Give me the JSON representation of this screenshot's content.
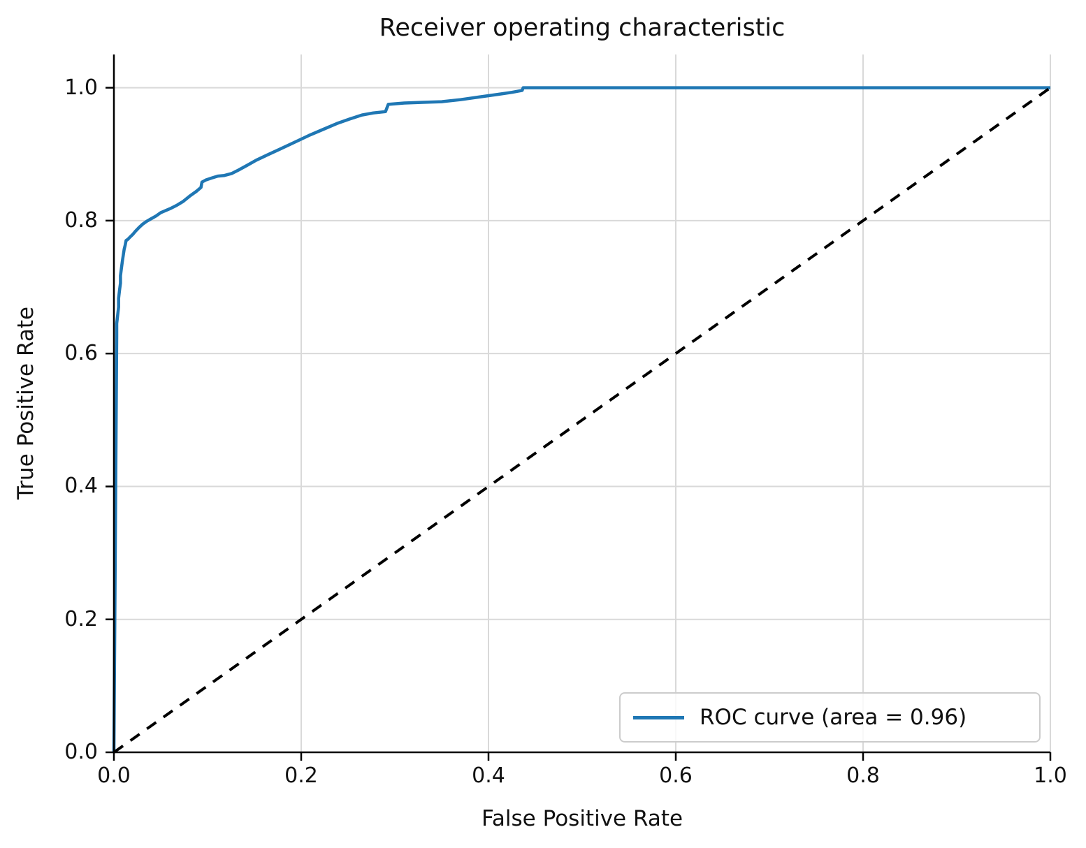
{
  "figure": {
    "background": "#ffffff"
  },
  "colors": {
    "roc_curve": "#1f77b4",
    "chance_line": "#000000",
    "grid": "#d9d9d9",
    "spine": "#000000",
    "text": "#111111",
    "legend_border": "#cccccc"
  },
  "chart_data": {
    "type": "line",
    "title": "Receiver operating characteristic",
    "xlabel": "False Positive Rate",
    "ylabel": "True Positive Rate",
    "xlim": [
      0.0,
      1.0
    ],
    "ylim": [
      0.0,
      1.05
    ],
    "xticks": [
      0.0,
      0.2,
      0.4,
      0.6,
      0.8,
      1.0
    ],
    "yticks": [
      0.0,
      0.2,
      0.4,
      0.6,
      0.8,
      1.0
    ],
    "grid": true,
    "legend": {
      "position": "lower right",
      "entries": [
        {
          "label": "ROC curve (area = 0.96)",
          "color": "#1f77b4",
          "style": "solid"
        }
      ]
    },
    "series": [
      {
        "name": "roc-curve",
        "label": "ROC curve (area = 0.96)",
        "auc": 0.96,
        "color": "#1f77b4",
        "style": "solid",
        "line_width": 4.5,
        "points": [
          [
            0.0,
            0.0
          ],
          [
            0.003,
            0.627
          ],
          [
            0.003,
            0.645
          ],
          [
            0.004,
            0.658
          ],
          [
            0.005,
            0.67
          ],
          [
            0.005,
            0.683
          ],
          [
            0.006,
            0.695
          ],
          [
            0.007,
            0.706
          ],
          [
            0.007,
            0.717
          ],
          [
            0.008,
            0.728
          ],
          [
            0.009,
            0.739
          ],
          [
            0.01,
            0.748
          ],
          [
            0.011,
            0.757
          ],
          [
            0.012,
            0.763
          ],
          [
            0.013,
            0.77
          ],
          [
            0.015,
            0.772
          ],
          [
            0.017,
            0.775
          ],
          [
            0.02,
            0.779
          ],
          [
            0.023,
            0.784
          ],
          [
            0.027,
            0.79
          ],
          [
            0.031,
            0.795
          ],
          [
            0.035,
            0.799
          ],
          [
            0.04,
            0.803
          ],
          [
            0.045,
            0.807
          ],
          [
            0.05,
            0.812
          ],
          [
            0.055,
            0.815
          ],
          [
            0.06,
            0.818
          ],
          [
            0.067,
            0.823
          ],
          [
            0.074,
            0.829
          ],
          [
            0.081,
            0.837
          ],
          [
            0.088,
            0.844
          ],
          [
            0.093,
            0.85
          ],
          [
            0.094,
            0.858
          ],
          [
            0.098,
            0.861
          ],
          [
            0.104,
            0.864
          ],
          [
            0.111,
            0.867
          ],
          [
            0.118,
            0.868
          ],
          [
            0.126,
            0.871
          ],
          [
            0.133,
            0.876
          ],
          [
            0.142,
            0.883
          ],
          [
            0.152,
            0.891
          ],
          [
            0.164,
            0.899
          ],
          [
            0.178,
            0.908
          ],
          [
            0.193,
            0.918
          ],
          [
            0.208,
            0.928
          ],
          [
            0.223,
            0.937
          ],
          [
            0.238,
            0.946
          ],
          [
            0.252,
            0.953
          ],
          [
            0.265,
            0.959
          ],
          [
            0.277,
            0.962
          ],
          [
            0.29,
            0.964
          ],
          [
            0.293,
            0.975
          ],
          [
            0.31,
            0.977
          ],
          [
            0.33,
            0.978
          ],
          [
            0.35,
            0.979
          ],
          [
            0.37,
            0.982
          ],
          [
            0.39,
            0.986
          ],
          [
            0.41,
            0.99
          ],
          [
            0.425,
            0.993
          ],
          [
            0.436,
            0.996
          ],
          [
            0.437,
            1.0
          ],
          [
            1.0,
            1.0
          ]
        ]
      },
      {
        "name": "chance-diagonal",
        "color": "#000000",
        "style": "dashed",
        "line_width": 4,
        "points": [
          [
            0.0,
            0.0
          ],
          [
            1.0,
            1.0
          ]
        ]
      }
    ]
  }
}
